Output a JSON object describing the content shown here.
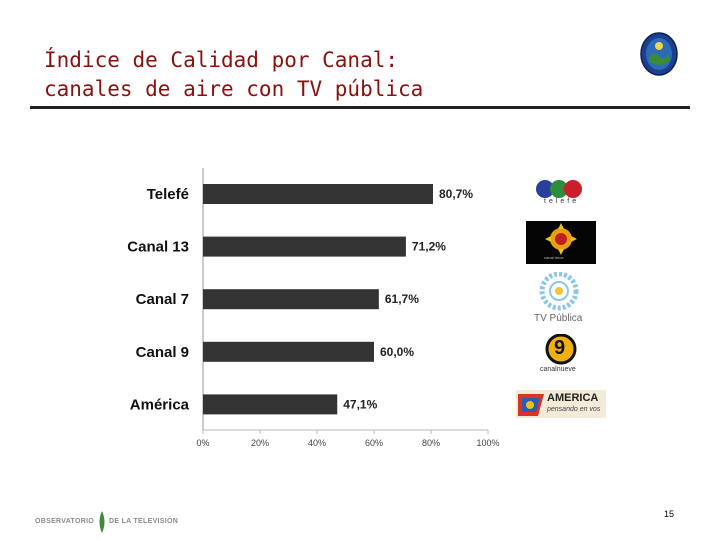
{
  "slide": {
    "title_line1": "Índice de Calidad por Canal:",
    "title_line2": "canales de aire con TV pública",
    "page_number": "15"
  },
  "footer": {
    "left": "OBSERVATORIO",
    "right": "DE LA TELEVISIÓN"
  },
  "logos": {
    "telefe": "telefe",
    "canal13": "canal trece",
    "tvp": "TV Pública",
    "canal9_digit": "9",
    "canal9": "canalnueve",
    "america": "AMERICA",
    "america_tagline": "pensando en vos"
  },
  "colors": {
    "title": "#8a1010",
    "bar": "#333333"
  },
  "chart_data": {
    "type": "bar",
    "orientation": "horizontal",
    "categories": [
      "Telefé",
      "Canal 13",
      "Canal 7",
      "Canal 9",
      "América"
    ],
    "values": [
      80.7,
      71.2,
      61.7,
      60.0,
      47.1
    ],
    "value_labels": [
      "80,7%",
      "71,2%",
      "61,7%",
      "60,0%",
      "47,1%"
    ],
    "x_ticks": [
      "0%",
      "20%",
      "40%",
      "60%",
      "80%",
      "100%"
    ],
    "xlim": [
      0,
      100
    ],
    "title": "",
    "xlabel": "",
    "ylabel": "",
    "grid": false,
    "legend": "none"
  }
}
